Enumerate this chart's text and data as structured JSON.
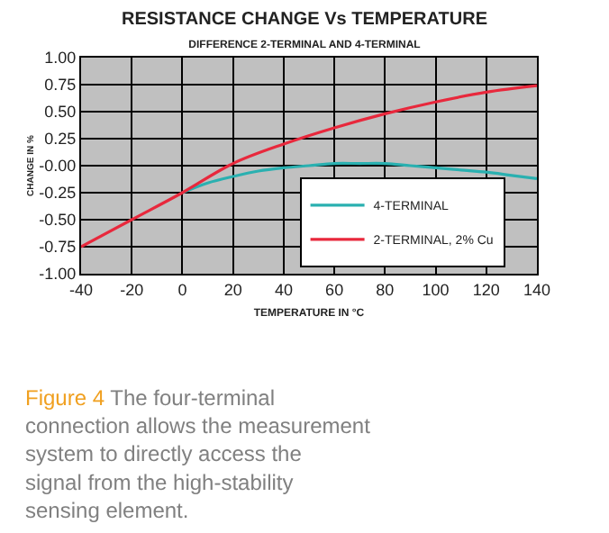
{
  "chart_data": {
    "type": "line",
    "title": "RESISTANCE CHANGE Vs TEMPERATURE",
    "subtitle": "DIFFERENCE 2-TERMINAL AND 4-TERMINAL",
    "xlabel": "TEMPERATURE IN °C",
    "ylabel": "CHANGE IN %",
    "annotations": [
      "Figure 4",
      "The four-terminal connection allows the measurement system to directly access the signal from the high-stability sensing element."
    ],
    "series": [
      {
        "name": "4-TERMINAL",
        "color": "#2ab0b0",
        "x": [
          0,
          10,
          20,
          30,
          40,
          50,
          60,
          70,
          80,
          90,
          100,
          110,
          120,
          130,
          140
        ],
        "values": [
          -0.25,
          -0.16,
          -0.1,
          -0.05,
          -0.02,
          0.0,
          0.02,
          0.02,
          0.02,
          0.0,
          -0.02,
          -0.04,
          -0.06,
          -0.09,
          -0.12
        ]
      },
      {
        "name": "2-TERMINAL, 2% Cu",
        "color": "#e8283c",
        "x": [
          -40,
          -20,
          0,
          20,
          40,
          60,
          80,
          100,
          120,
          140
        ],
        "values": [
          -0.75,
          -0.5,
          -0.25,
          0.02,
          0.2,
          0.35,
          0.48,
          0.59,
          0.68,
          0.74
        ]
      }
    ],
    "xlim": [
      -40,
      140
    ],
    "xticks": [
      -40,
      -20,
      0,
      20,
      40,
      60,
      80,
      100,
      120,
      140
    ],
    "ylim": [
      -1,
      1
    ],
    "yticks": [
      {
        "value": 1,
        "label": "1.00"
      },
      {
        "value": 0.75,
        "label": "0.75"
      },
      {
        "value": 0.5,
        "label": "0.50"
      },
      {
        "value": 0.25,
        "label": "0.25"
      },
      {
        "value": 0,
        "label": "-0.00"
      },
      {
        "value": -0.25,
        "label": "-0.25"
      },
      {
        "value": -0.5,
        "label": "-0.50"
      },
      {
        "value": -0.75,
        "label": "-0.75"
      },
      {
        "value": -1,
        "label": "-1.00"
      }
    ],
    "grid": true,
    "legend": "bottom right",
    "marker": "none",
    "line_style": "solid"
  }
}
